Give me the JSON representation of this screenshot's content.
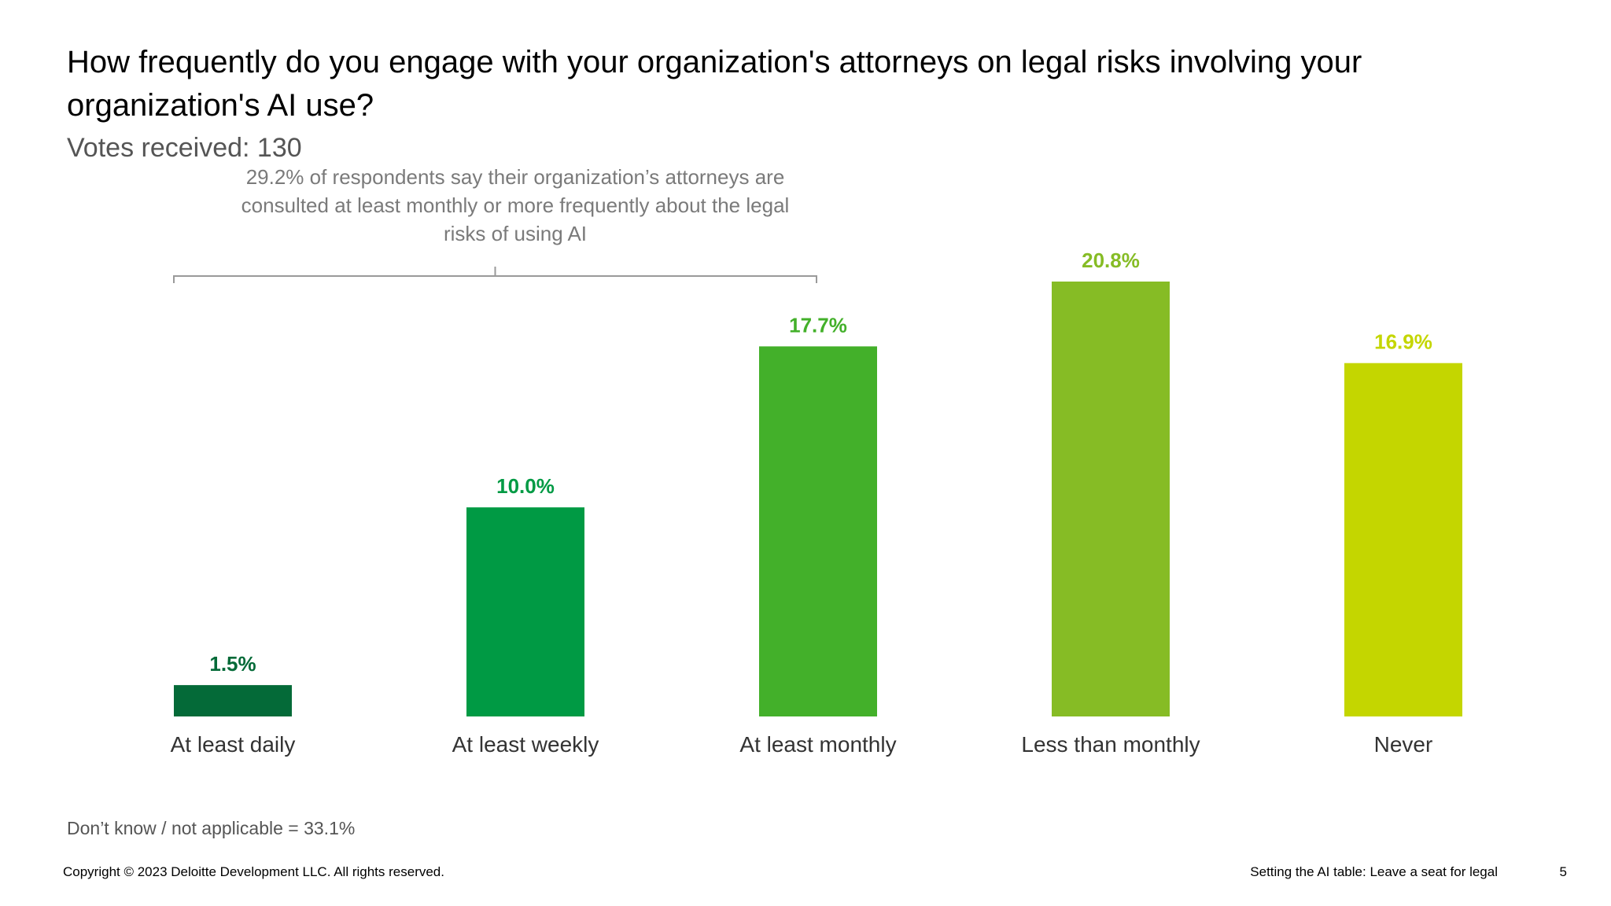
{
  "slide": {
    "title": "How frequently do you engage with your organization's attorneys on legal risks involving your organization's AI use?",
    "subtitle": "Votes received: 130",
    "callout": "29.2% of respondents say their organization’s attorneys are consulted at least monthly or more frequently about the legal risks of using AI",
    "note": "Don’t know / not applicable = 33.1%",
    "copyright": "Copyright © 2023 Deloitte Development LLC. All rights reserved.",
    "footer_title": "Setting the AI table: Leave a seat for legal",
    "page_number": "5"
  },
  "chart_data": {
    "type": "bar",
    "title": "",
    "xlabel": "",
    "ylabel": "",
    "categories": [
      "At least daily",
      "At least weekly",
      "At least monthly",
      "Less than monthly",
      "Never"
    ],
    "values": [
      1.5,
      10.0,
      17.7,
      20.8,
      16.9
    ],
    "data_labels": [
      "1.5%",
      "10.0%",
      "17.7%",
      "20.8%",
      "16.9%"
    ],
    "colors": [
      "#046a38",
      "#009a44",
      "#43b02a",
      "#86bc25",
      "#c4d600"
    ],
    "ylim": [
      0,
      20.8
    ],
    "grid": false,
    "legend": "none",
    "bracket_span_categories": [
      "At least daily",
      "At least monthly"
    ]
  }
}
